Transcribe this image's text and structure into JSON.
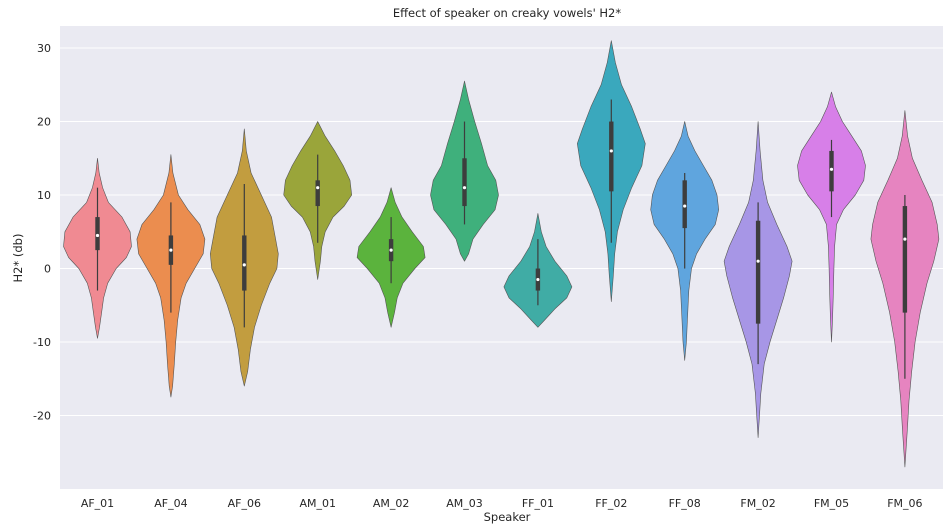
{
  "chart_data": {
    "type": "violin",
    "title": "Effect of speaker on creaky vowels' H2*",
    "xlabel": "Speaker",
    "ylabel": "H2* (db)",
    "ylim": [
      -30,
      33
    ],
    "yticks": [
      -20,
      -10,
      0,
      10,
      20,
      30
    ],
    "grid": true,
    "background": "#eaeaf2",
    "categories": [
      "AF_01",
      "AF_04",
      "AF_06",
      "AM_01",
      "AM_02",
      "AM_03",
      "FF_01",
      "FF_02",
      "FF_08",
      "FM_02",
      "FM_05",
      "FM_06"
    ],
    "series": [
      {
        "category": "AF_01",
        "color": "#f08a92",
        "min": -9.5,
        "max": 15,
        "median": 4.5,
        "q1": 2.5,
        "q3": 7,
        "whisker_low": -3,
        "whisker_high": 11,
        "profile": [
          [
            15,
            0
          ],
          [
            13,
            0.05
          ],
          [
            11,
            0.15
          ],
          [
            9,
            0.32
          ],
          [
            7,
            0.72
          ],
          [
            5,
            0.96
          ],
          [
            3,
            1.0
          ],
          [
            1.5,
            0.85
          ],
          [
            0,
            0.55
          ],
          [
            -2,
            0.3
          ],
          [
            -4,
            0.18
          ],
          [
            -6,
            0.12
          ],
          [
            -8,
            0.06
          ],
          [
            -9.5,
            0
          ]
        ]
      },
      {
        "category": "AF_04",
        "color": "#eb8d4f",
        "min": -17.5,
        "max": 15.5,
        "median": 2.5,
        "q1": 0.5,
        "q3": 4.5,
        "whisker_low": -6,
        "whisker_high": 9,
        "profile": [
          [
            15.5,
            0
          ],
          [
            13,
            0.06
          ],
          [
            10,
            0.22
          ],
          [
            8,
            0.5
          ],
          [
            6,
            0.85
          ],
          [
            4,
            1.0
          ],
          [
            2,
            0.95
          ],
          [
            0,
            0.7
          ],
          [
            -2,
            0.45
          ],
          [
            -4,
            0.3
          ],
          [
            -7,
            0.2
          ],
          [
            -10,
            0.14
          ],
          [
            -13,
            0.1
          ],
          [
            -16,
            0.05
          ],
          [
            -17.5,
            0
          ]
        ]
      },
      {
        "category": "AF_06",
        "color": "#c29d3f",
        "min": -16,
        "max": 19,
        "median": 0.5,
        "q1": -3,
        "q3": 4.5,
        "whisker_low": -8,
        "whisker_high": 11.5,
        "profile": [
          [
            19,
            0
          ],
          [
            16,
            0.06
          ],
          [
            13,
            0.2
          ],
          [
            10,
            0.5
          ],
          [
            7,
            0.8
          ],
          [
            4,
            0.92
          ],
          [
            2,
            1.0
          ],
          [
            0,
            0.96
          ],
          [
            -2,
            0.75
          ],
          [
            -5,
            0.5
          ],
          [
            -8,
            0.3
          ],
          [
            -11,
            0.18
          ],
          [
            -14,
            0.1
          ],
          [
            -16,
            0
          ]
        ]
      },
      {
        "category": "AM_01",
        "color": "#9aa53a",
        "min": -1.5,
        "max": 20,
        "median": 11,
        "q1": 8.5,
        "q3": 12,
        "whisker_low": 3.5,
        "whisker_high": 15.5,
        "profile": [
          [
            20,
            0
          ],
          [
            18,
            0.22
          ],
          [
            16,
            0.5
          ],
          [
            14,
            0.75
          ],
          [
            12,
            0.95
          ],
          [
            10,
            1.0
          ],
          [
            8.5,
            0.78
          ],
          [
            7,
            0.45
          ],
          [
            5,
            0.22
          ],
          [
            3,
            0.12
          ],
          [
            1,
            0.08
          ],
          [
            -1.5,
            0
          ]
        ]
      },
      {
        "category": "AM_02",
        "color": "#5bb33d",
        "min": -8,
        "max": 11,
        "median": 2.5,
        "q1": 1,
        "q3": 4,
        "whisker_low": -2,
        "whisker_high": 7,
        "profile": [
          [
            11,
            0
          ],
          [
            9,
            0.12
          ],
          [
            7,
            0.32
          ],
          [
            5,
            0.62
          ],
          [
            3,
            0.95
          ],
          [
            1.5,
            1.0
          ],
          [
            0,
            0.7
          ],
          [
            -2,
            0.35
          ],
          [
            -4,
            0.18
          ],
          [
            -6,
            0.1
          ],
          [
            -8,
            0
          ]
        ]
      },
      {
        "category": "AM_03",
        "color": "#3fb07c",
        "min": 1,
        "max": 25.5,
        "median": 11,
        "q1": 8.5,
        "q3": 15,
        "whisker_low": 6,
        "whisker_high": 20,
        "profile": [
          [
            25.5,
            0
          ],
          [
            23,
            0.12
          ],
          [
            20,
            0.3
          ],
          [
            17,
            0.5
          ],
          [
            14,
            0.68
          ],
          [
            12,
            0.92
          ],
          [
            10,
            1.0
          ],
          [
            8,
            0.9
          ],
          [
            6,
            0.55
          ],
          [
            4,
            0.25
          ],
          [
            2,
            0.12
          ],
          [
            1,
            0
          ]
        ]
      },
      {
        "category": "FF_01",
        "color": "#40aca5",
        "min": -8,
        "max": 7.5,
        "median": -1.5,
        "q1": -3,
        "q3": 0,
        "whisker_low": -5,
        "whisker_high": 4,
        "profile": [
          [
            7.5,
            0
          ],
          [
            5,
            0.1
          ],
          [
            3,
            0.24
          ],
          [
            1,
            0.5
          ],
          [
            -1,
            0.85
          ],
          [
            -2.5,
            1.0
          ],
          [
            -4,
            0.85
          ],
          [
            -5.5,
            0.5
          ],
          [
            -7,
            0.2
          ],
          [
            -8,
            0
          ]
        ]
      },
      {
        "category": "FF_02",
        "color": "#3aa8bd",
        "min": -4.5,
        "max": 31,
        "median": 16,
        "q1": 10.5,
        "q3": 20,
        "whisker_low": 3.5,
        "whisker_high": 23,
        "profile": [
          [
            31,
            0
          ],
          [
            28,
            0.12
          ],
          [
            25,
            0.3
          ],
          [
            22,
            0.6
          ],
          [
            19,
            0.85
          ],
          [
            17,
            1.0
          ],
          [
            14,
            0.9
          ],
          [
            11,
            0.6
          ],
          [
            8,
            0.35
          ],
          [
            5,
            0.18
          ],
          [
            2,
            0.1
          ],
          [
            -1,
            0.06
          ],
          [
            -4.5,
            0
          ]
        ]
      },
      {
        "category": "FF_08",
        "color": "#5fa5de",
        "min": -12.5,
        "max": 20,
        "median": 8.5,
        "q1": 5.5,
        "q3": 12,
        "whisker_low": 0,
        "whisker_high": 13,
        "profile": [
          [
            20,
            0
          ],
          [
            18,
            0.1
          ],
          [
            16,
            0.3
          ],
          [
            14,
            0.55
          ],
          [
            12,
            0.8
          ],
          [
            10,
            0.95
          ],
          [
            8,
            1.0
          ],
          [
            6,
            0.9
          ],
          [
            4,
            0.6
          ],
          [
            2,
            0.35
          ],
          [
            0,
            0.2
          ],
          [
            -3,
            0.12
          ],
          [
            -7,
            0.08
          ],
          [
            -10,
            0.05
          ],
          [
            -12.5,
            0
          ]
        ]
      },
      {
        "category": "FM_02",
        "color": "#a796e6",
        "min": -23,
        "max": 20,
        "median": 1,
        "q1": -7.5,
        "q3": 6.5,
        "whisker_low": -13,
        "whisker_high": 9,
        "profile": [
          [
            20,
            0
          ],
          [
            16,
            0.06
          ],
          [
            12,
            0.14
          ],
          [
            9,
            0.28
          ],
          [
            6,
            0.55
          ],
          [
            3,
            0.85
          ],
          [
            1,
            1.0
          ],
          [
            -1,
            0.92
          ],
          [
            -4,
            0.75
          ],
          [
            -7,
            0.55
          ],
          [
            -10,
            0.35
          ],
          [
            -13,
            0.18
          ],
          [
            -17,
            0.08
          ],
          [
            -20,
            0.04
          ],
          [
            -23,
            0
          ]
        ]
      },
      {
        "category": "FM_05",
        "color": "#d77fe8",
        "min": -10,
        "max": 24,
        "median": 13.5,
        "q1": 10.5,
        "q3": 16,
        "whisker_low": 7,
        "whisker_high": 17.5,
        "profile": [
          [
            24,
            0
          ],
          [
            22,
            0.12
          ],
          [
            20,
            0.32
          ],
          [
            18,
            0.6
          ],
          [
            16,
            0.88
          ],
          [
            14,
            1.0
          ],
          [
            12,
            0.95
          ],
          [
            10,
            0.7
          ],
          [
            8,
            0.35
          ],
          [
            6,
            0.15
          ],
          [
            3,
            0.09
          ],
          [
            0,
            0.07
          ],
          [
            -4,
            0.05
          ],
          [
            -7,
            0.03
          ],
          [
            -10,
            0
          ]
        ]
      },
      {
        "category": "FM_06",
        "color": "#e684c0",
        "min": -27,
        "max": 21.5,
        "median": 4,
        "q1": -6,
        "q3": 8.5,
        "whisker_low": -15,
        "whisker_high": 10,
        "profile": [
          [
            21.5,
            0
          ],
          [
            18,
            0.08
          ],
          [
            15,
            0.22
          ],
          [
            12,
            0.5
          ],
          [
            9,
            0.8
          ],
          [
            6,
            0.95
          ],
          [
            4,
            1.0
          ],
          [
            1,
            0.85
          ],
          [
            -2,
            0.65
          ],
          [
            -6,
            0.45
          ],
          [
            -10,
            0.3
          ],
          [
            -14,
            0.2
          ],
          [
            -18,
            0.12
          ],
          [
            -22,
            0.07
          ],
          [
            -27,
            0
          ]
        ]
      }
    ]
  }
}
